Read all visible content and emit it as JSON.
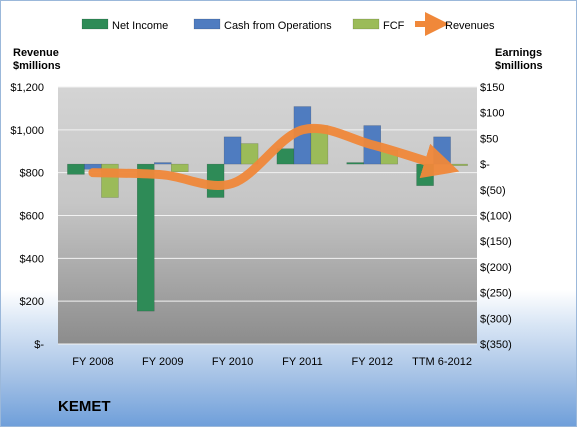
{
  "company": "KEMET",
  "chart_data": {
    "type": "bar",
    "categories": [
      "FY 2008",
      "FY 2009",
      "FY 2010",
      "FY 2011",
      "FY 2012",
      "TTM 6-2012"
    ],
    "series": [
      {
        "name": "Net Income",
        "axis": "right",
        "type": "bar",
        "color": "#2e8b57",
        "values": [
          -20,
          -286,
          -65,
          30,
          3,
          -42
        ]
      },
      {
        "name": "Cash from Operations",
        "axis": "right",
        "type": "bar",
        "color": "#4f7cc0",
        "values": [
          -10,
          3,
          53,
          112,
          75,
          53
        ]
      },
      {
        "name": "FCF",
        "axis": "right",
        "type": "bar",
        "color": "#9bbb59",
        "values": [
          -65,
          -15,
          40,
          75,
          27,
          -3
        ]
      },
      {
        "name": "Revenues",
        "axis": "left",
        "type": "line",
        "color": "#f0883a",
        "values": [
          800,
          790,
          750,
          1000,
          930,
          830
        ]
      }
    ],
    "left_axis": {
      "title": [
        "Revenue",
        "$millions"
      ],
      "min": 0,
      "max": 1200,
      "ticks": [
        "$-",
        "$200",
        "$400",
        "$600",
        "$800",
        "$1,000",
        "$1,200"
      ]
    },
    "right_axis": {
      "title": [
        "Earnings",
        "$millions"
      ],
      "min": -350,
      "max": 150,
      "ticks": [
        "$(350)",
        "$(300)",
        "$(250)",
        "$(200)",
        "$(150)",
        "$(100)",
        "$(50)",
        "$-",
        "$50",
        "$100",
        "$150"
      ]
    },
    "legend_position": "top",
    "grid": true
  }
}
